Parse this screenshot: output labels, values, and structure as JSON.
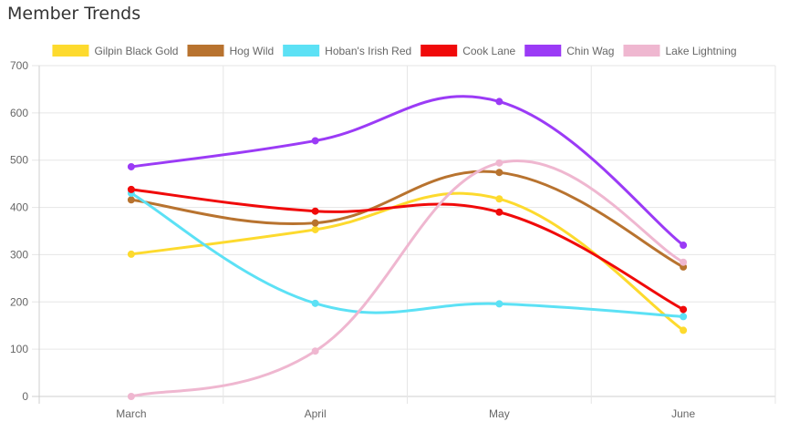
{
  "page": {
    "title": "Member Trends"
  },
  "chart_data": {
    "type": "line",
    "title": "",
    "xlabel": "",
    "ylabel": "",
    "categories": [
      "March",
      "April",
      "May",
      "June"
    ],
    "ylim": [
      0,
      700
    ],
    "yticks": [
      0,
      100,
      200,
      300,
      400,
      500,
      600,
      700
    ],
    "grid": true,
    "smooth": true,
    "legend_position": "top",
    "series": [
      {
        "name": "Gilpin Black Gold",
        "color": "#FDDA2E",
        "values": [
          301,
          353,
          418,
          140
        ]
      },
      {
        "name": "Hog Wild",
        "color": "#B8732F",
        "values": [
          416,
          367,
          474,
          274
        ]
      },
      {
        "name": "Hoban's Irish Red",
        "color": "#5CE1F5",
        "values": [
          430,
          197,
          196,
          169
        ]
      },
      {
        "name": "Cook Lane",
        "color": "#F00A0A",
        "values": [
          438,
          392,
          390,
          184
        ]
      },
      {
        "name": "Chin Wag",
        "color": "#9B3BF6",
        "values": [
          486,
          541,
          624,
          320
        ]
      },
      {
        "name": "Lake Lightning",
        "color": "#EFB7D0",
        "values": [
          0,
          96,
          494,
          284
        ]
      }
    ]
  }
}
